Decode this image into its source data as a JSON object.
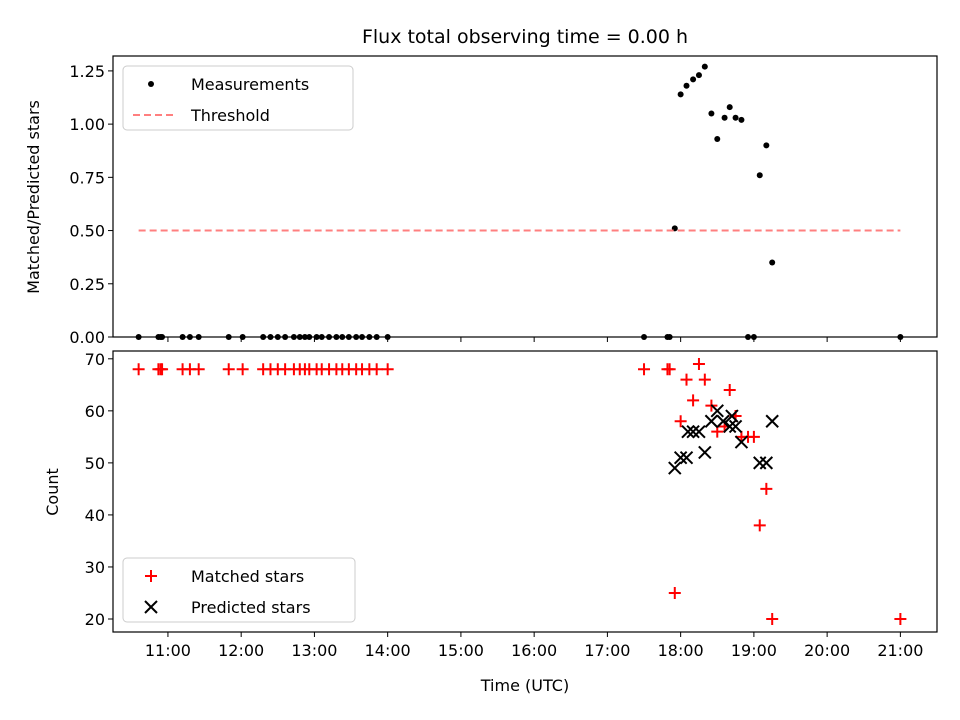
{
  "chart_data": {
    "title": "Flux total observing time = 0.00 h",
    "xlabel": "Time (UTC)",
    "x_unit": "hour",
    "xlim": [
      10.25,
      21.5
    ],
    "x_ticks": [
      11,
      12,
      13,
      14,
      15,
      16,
      17,
      18,
      19,
      20,
      21
    ],
    "x_tick_labels": [
      "11:00",
      "12:00",
      "13:00",
      "14:00",
      "15:00",
      "16:00",
      "17:00",
      "18:00",
      "19:00",
      "20:00",
      "21:00"
    ],
    "panels": [
      {
        "type": "scatter",
        "ylabel": "Matched/Predicted stars",
        "ylim": [
          0,
          1.32
        ],
        "y_ticks": [
          0,
          0.25,
          0.5,
          0.75,
          1.0,
          1.25
        ],
        "y_tick_labels": [
          "0.00",
          "0.25",
          "0.50",
          "0.75",
          "1.00",
          "1.25"
        ],
        "legend": "top-left",
        "series": [
          {
            "name": "Measurements",
            "marker": "dot",
            "color": "#000000",
            "x": [
              10.6,
              10.87,
              10.9,
              10.92,
              11.2,
              11.3,
              11.42,
              11.83,
              12.02,
              12.3,
              12.4,
              12.5,
              12.6,
              12.72,
              12.8,
              12.87,
              12.93,
              13.03,
              13.1,
              13.2,
              13.3,
              13.38,
              13.47,
              13.57,
              13.65,
              13.75,
              13.85,
              14.0,
              17.5,
              17.82,
              17.85,
              17.92,
              18.0,
              18.08,
              18.17,
              18.25,
              18.33,
              18.42,
              18.5,
              18.6,
              18.67,
              18.75,
              18.83,
              18.92,
              19.0,
              19.08,
              19.17,
              19.25,
              21.0
            ],
            "y": [
              0,
              0,
              0,
              0,
              0,
              0,
              0,
              0,
              0,
              0,
              0,
              0,
              0,
              0,
              0,
              0,
              0,
              0,
              0,
              0,
              0,
              0,
              0,
              0,
              0,
              0,
              0,
              0,
              0,
              0,
              0,
              0.51,
              1.14,
              1.18,
              1.21,
              1.23,
              1.27,
              1.05,
              0.93,
              1.03,
              1.08,
              1.03,
              1.02,
              0,
              0,
              0.76,
              0.9,
              0.35,
              0
            ]
          },
          {
            "name": "Threshold",
            "type": "line",
            "style": "dashed",
            "color": "#ff7f7f",
            "x": [
              10.6,
              21.0
            ],
            "y": [
              0.5,
              0.5
            ]
          }
        ]
      },
      {
        "type": "scatter",
        "ylabel": "Count",
        "ylim": [
          17.5,
          71.5
        ],
        "y_ticks": [
          20,
          30,
          40,
          50,
          60,
          70
        ],
        "y_tick_labels": [
          "20",
          "30",
          "40",
          "50",
          "60",
          "70"
        ],
        "legend": "bottom-left",
        "series": [
          {
            "name": "Matched stars",
            "marker": "plus",
            "color": "#ff0000",
            "x": [
              10.6,
              10.87,
              10.9,
              10.92,
              11.2,
              11.3,
              11.42,
              11.83,
              12.02,
              12.3,
              12.4,
              12.5,
              12.6,
              12.72,
              12.8,
              12.87,
              12.93,
              13.03,
              13.1,
              13.2,
              13.3,
              13.38,
              13.47,
              13.57,
              13.65,
              13.75,
              13.85,
              14.0,
              17.5,
              17.82,
              17.85,
              17.92,
              18.0,
              18.08,
              18.17,
              18.25,
              18.33,
              18.42,
              18.5,
              18.6,
              18.67,
              18.75,
              18.83,
              18.92,
              19.0,
              19.08,
              19.17,
              19.25,
              21.0
            ],
            "y": [
              68,
              68,
              68,
              68,
              68,
              68,
              68,
              68,
              68,
              68,
              68,
              68,
              68,
              68,
              68,
              68,
              68,
              68,
              68,
              68,
              68,
              68,
              68,
              68,
              68,
              68,
              68,
              68,
              68,
              68,
              68,
              25,
              58,
              66,
              62,
              69,
              66,
              61,
              56,
              57,
              64,
              59,
              55,
              55,
              55,
              38,
              45,
              20,
              20
            ]
          },
          {
            "name": "Predicted stars",
            "marker": "x",
            "color": "#000000",
            "x": [
              17.92,
              18.0,
              18.08,
              18.1,
              18.17,
              18.25,
              18.33,
              18.42,
              18.5,
              18.58,
              18.67,
              18.7,
              18.75,
              18.83,
              19.08,
              19.17,
              19.25
            ],
            "y": [
              49,
              51,
              51,
              56,
              56,
              56,
              52,
              58,
              60,
              58,
              57,
              59,
              57,
              54,
              50,
              50,
              58
            ]
          }
        ]
      }
    ]
  }
}
